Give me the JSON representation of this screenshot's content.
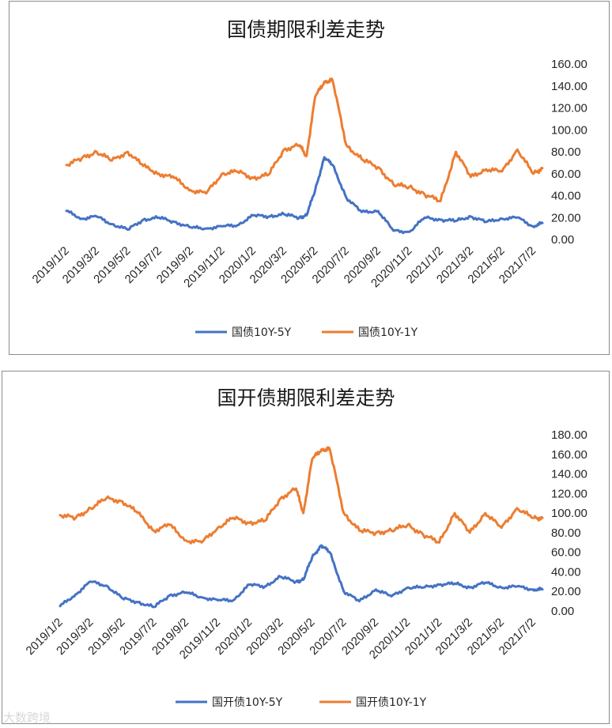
{
  "colors": {
    "series_a": "#4472c4",
    "series_b": "#ed7d31",
    "frame": "#8c8c8c",
    "text": "#262626"
  },
  "watermark": "大数跨境",
  "charts": [
    {
      "title": "国债期限利差走势",
      "legend": [
        "国债10Y-5Y",
        "国债10Y-1Y"
      ],
      "yticks": [
        "160.00",
        "140.00",
        "120.00",
        "100.00",
        "80.00",
        "60.00",
        "40.00",
        "20.00",
        "0.00"
      ],
      "xticks": [
        "2019/1/2",
        "2019/3/2",
        "2019/5/2",
        "2019/7/2",
        "2019/9/2",
        "2019/11/2",
        "2020/1/2",
        "2020/3/2",
        "2020/5/2",
        "2020/7/2",
        "2020/9/2",
        "2020/11/2",
        "2021/1/2",
        "2021/3/2",
        "2021/5/2",
        "2021/7/2"
      ]
    },
    {
      "title": "国开债期限利差走势",
      "legend": [
        "国开债10Y-5Y",
        "国开债10Y-1Y"
      ],
      "yticks": [
        "180.00",
        "160.00",
        "140.00",
        "120.00",
        "100.00",
        "80.00",
        "60.00",
        "40.00",
        "20.00",
        "0.00"
      ],
      "xticks": [
        "2019/1/2",
        "2019/3/2",
        "2019/5/2",
        "2019/7/2",
        "2019/9/2",
        "2019/11/2",
        "2020/1/2",
        "2020/3/2",
        "2020/5/2",
        "2020/7/2",
        "2020/9/2",
        "2020/11/2",
        "2021/1/2",
        "2021/3/2",
        "2021/5/2",
        "2021/7/2"
      ]
    }
  ],
  "chart_data": [
    {
      "type": "line",
      "title": "国债期限利差走势",
      "ylim": [
        0,
        160
      ],
      "grid": false,
      "legend_position": "bottom",
      "x": [
        "2019/1/2",
        "2019/2/1",
        "2019/3/2",
        "2019/4/1",
        "2019/5/2",
        "2019/6/1",
        "2019/7/2",
        "2019/8/1",
        "2019/9/2",
        "2019/10/2",
        "2019/11/2",
        "2019/12/2",
        "2020/1/2",
        "2020/2/1",
        "2020/3/2",
        "2020/4/1",
        "2020/4/15",
        "2020/5/2",
        "2020/5/20",
        "2020/6/5",
        "2020/7/2",
        "2020/8/1",
        "2020/9/2",
        "2020/10/2",
        "2020/11/2",
        "2020/12/2",
        "2021/1/2",
        "2021/2/1",
        "2021/3/2",
        "2021/4/1",
        "2021/5/2",
        "2021/6/1",
        "2021/7/2",
        "2021/7/20"
      ],
      "series": [
        {
          "name": "国债10Y-5Y",
          "values": [
            26,
            19,
            21,
            14,
            9,
            18,
            20,
            16,
            11,
            10,
            12,
            13,
            22,
            21,
            23,
            20,
            22,
            45,
            75,
            68,
            38,
            25,
            26,
            8,
            7,
            20,
            18,
            17,
            21,
            16,
            19,
            20,
            12,
            15
          ]
        },
        {
          "name": "国债10Y-1Y",
          "values": [
            68,
            74,
            80,
            72,
            80,
            67,
            60,
            56,
            45,
            42,
            60,
            62,
            56,
            59,
            82,
            86,
            76,
            130,
            144,
            145,
            86,
            73,
            66,
            50,
            48,
            41,
            35,
            80,
            57,
            64,
            62,
            82,
            60,
            65
          ]
        }
      ]
    },
    {
      "type": "line",
      "title": "国开债期限利差走势",
      "ylim": [
        0,
        180
      ],
      "grid": false,
      "legend_position": "bottom",
      "x": [
        "2019/1/2",
        "2019/2/1",
        "2019/3/2",
        "2019/4/1",
        "2019/5/2",
        "2019/6/1",
        "2019/7/2",
        "2019/8/1",
        "2019/9/2",
        "2019/10/2",
        "2019/11/2",
        "2019/12/2",
        "2020/1/2",
        "2020/2/1",
        "2020/3/2",
        "2020/4/1",
        "2020/4/15",
        "2020/5/2",
        "2020/5/20",
        "2020/6/5",
        "2020/7/2",
        "2020/8/1",
        "2020/9/2",
        "2020/10/2",
        "2020/11/2",
        "2020/12/2",
        "2021/1/2",
        "2021/2/1",
        "2021/3/2",
        "2021/4/1",
        "2021/5/2",
        "2021/6/1",
        "2021/7/2",
        "2021/7/20"
      ],
      "series": [
        {
          "name": "国开债10Y-5Y",
          "values": [
            5,
            17,
            30,
            26,
            13,
            9,
            4,
            16,
            19,
            14,
            11,
            11,
            27,
            25,
            35,
            30,
            32,
            55,
            67,
            60,
            20,
            10,
            22,
            15,
            24,
            24,
            27,
            28,
            24,
            29,
            24,
            25,
            22,
            22
          ]
        },
        {
          "name": "国开债10Y-1Y",
          "values": [
            98,
            95,
            105,
            115,
            112,
            100,
            82,
            88,
            72,
            70,
            85,
            95,
            90,
            92,
            115,
            125,
            100,
            155,
            165,
            165,
            100,
            82,
            80,
            82,
            88,
            78,
            70,
            100,
            80,
            100,
            85,
            105,
            95,
            95
          ]
        }
      ]
    }
  ]
}
